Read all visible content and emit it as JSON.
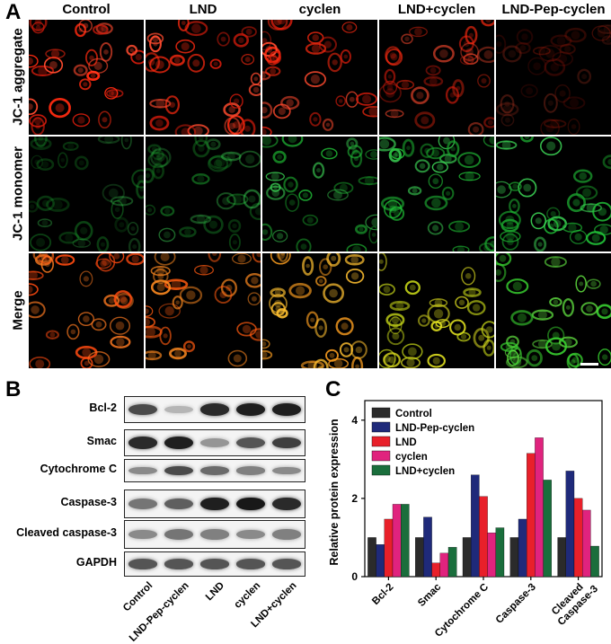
{
  "panel_letters": {
    "a": "A",
    "b": "B",
    "c": "C"
  },
  "microscopy": {
    "columns": [
      "Control",
      "LND",
      "cyclen",
      "LND+cyclen",
      "LND-Pep-cyclen"
    ],
    "rows": [
      "JC-1 aggregate",
      "JC-1 monomer",
      "Merge"
    ]
  },
  "western": {
    "proteins": [
      "Bcl-2",
      "Smac",
      "Cytochrome C",
      "Caspase-3",
      "Cleaved caspase-3",
      "GAPDH"
    ],
    "lanes": [
      "Control",
      "LND-Pep-cyclen",
      "LND",
      "cyclen",
      "LND+cyclen"
    ]
  },
  "chart_data": {
    "type": "bar",
    "ylabel": "Relative protein expression",
    "xlabel": "",
    "ylim": [
      0,
      4.5
    ],
    "yticks": [
      0,
      2,
      4
    ],
    "categories": [
      "Bcl-2",
      "Smac",
      "Cytochrome C",
      "Caspase-3",
      "Cleaved Caspase-3"
    ],
    "series": [
      {
        "name": "Control",
        "color": "#2b2b2b",
        "values": [
          1.0,
          1.0,
          1.0,
          1.0,
          1.0
        ]
      },
      {
        "name": "LND-Pep-cyclen",
        "color": "#1f2a7a",
        "values": [
          0.82,
          1.52,
          2.6,
          1.47,
          2.7
        ]
      },
      {
        "name": "LND",
        "color": "#e8202a",
        "values": [
          1.47,
          0.35,
          2.05,
          3.15,
          2.0
        ]
      },
      {
        "name": "cyclen",
        "color": "#e0237e",
        "values": [
          1.85,
          0.6,
          1.12,
          3.55,
          1.7
        ]
      },
      {
        "name": "LND+cyclen",
        "color": "#1a6e3c",
        "values": [
          1.85,
          0.75,
          1.25,
          2.47,
          0.78
        ]
      }
    ],
    "legend_position": "top-left",
    "grid": false
  }
}
